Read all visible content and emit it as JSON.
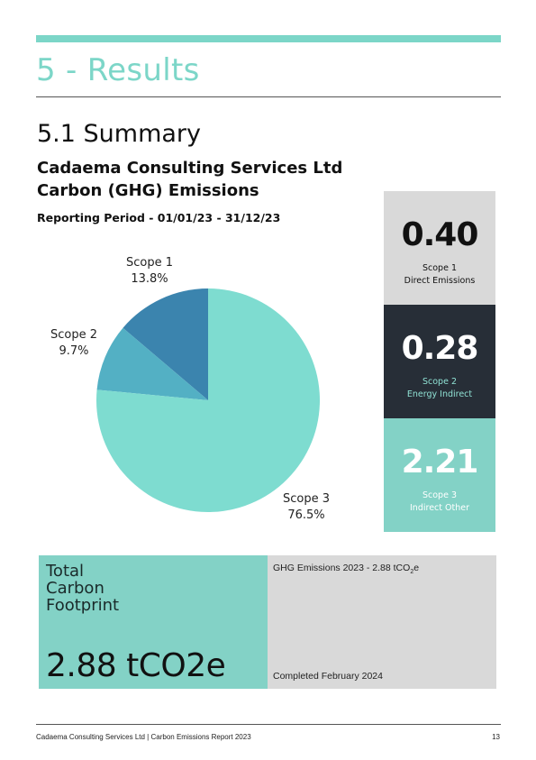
{
  "section_title": "5 - Results",
  "subsection_title": "5.1  Summary",
  "company_line1": "Cadaema Consulting Services Ltd",
  "company_line2": "Carbon (GHG) Emissions",
  "reporting_period": "Reporting Period - 01/01/23 - 31/12/23",
  "chart_data": {
    "type": "pie",
    "categories": [
      "Scope 1",
      "Scope 2",
      "Scope 3"
    ],
    "values": [
      13.8,
      9.7,
      76.5
    ],
    "value_labels": [
      "13.8%",
      "9.7%",
      "76.5%"
    ],
    "colors": [
      "#3b84ae",
      "#53b0c4",
      "#7edcd0"
    ],
    "title": ""
  },
  "stats": [
    {
      "value": "0.40",
      "line1": "Scope 1",
      "line2": "Direct Emissions"
    },
    {
      "value": "0.28",
      "line1": "Scope 2",
      "line2": "Energy Indirect"
    },
    {
      "value": "2.21",
      "line1": "Scope 3",
      "line2": "Indirect Other"
    }
  ],
  "total": {
    "label_line1": "Total",
    "label_line2": "Carbon",
    "label_line3": "Footprint",
    "value": "2.88 tCO2e"
  },
  "info": {
    "top_prefix": "GHG Emissions 2023 - 2.88 tCO",
    "top_sub": "2",
    "top_suffix": "e",
    "bottom": "Completed February 2024"
  },
  "footer": {
    "text": "Cadaema Consulting Services Ltd | Carbon Emissions Report 2023",
    "page_number": "13"
  },
  "colors": {
    "accent": "#7cd6c8",
    "dark_box": "#272e37",
    "grey_box": "#d9d9d9",
    "teal_box": "#83d2c6"
  }
}
